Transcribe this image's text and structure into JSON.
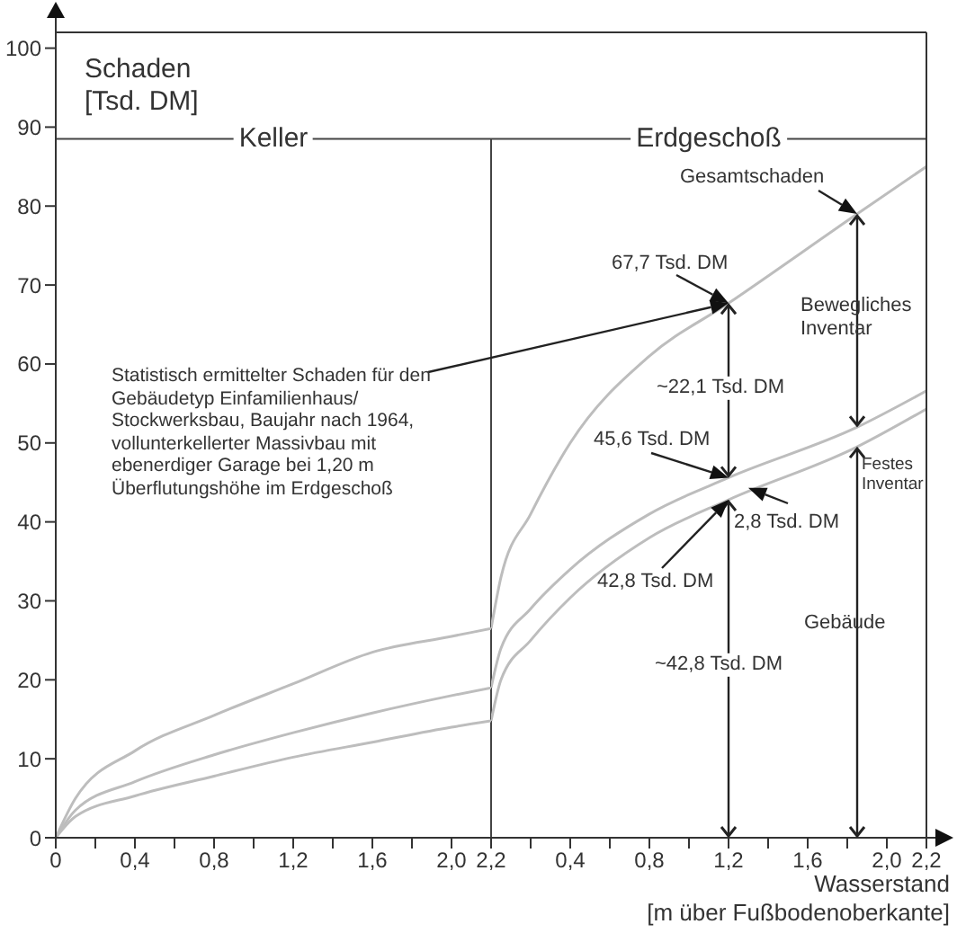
{
  "chart_data": [
    {
      "type": "line",
      "title": "Keller",
      "ylabel": "Schaden [Tsd. DM]",
      "x": [
        0,
        0.1,
        0.4,
        0.8,
        1.2,
        1.6,
        2.0,
        2.2
      ],
      "series": [
        {
          "color": "#bdbdbd",
          "values": [
            0,
            5,
            11,
            15.5,
            19.5,
            23.5,
            25.5,
            26.5
          ]
        },
        {
          "color": "#bdbdbd",
          "values": [
            0,
            3.5,
            7.1,
            10.5,
            13.3,
            15.8,
            18,
            19
          ]
        },
        {
          "color": "#bdbdbd",
          "values": [
            0,
            2.7,
            5.3,
            7.8,
            10.2,
            12.1,
            14,
            14.8
          ]
        }
      ],
      "xlim": [
        0,
        2.2
      ],
      "xticks": [
        0,
        {
          "value": 0.2,
          "label": null
        },
        {
          "value": 0.4,
          "label": "0,4"
        },
        {
          "value": 0.6,
          "label": null
        },
        {
          "value": 0.8,
          "label": "0,8"
        },
        {
          "value": 1.0,
          "label": null
        },
        {
          "value": 1.2,
          "label": "1,2"
        },
        {
          "value": 1.4,
          "label": null
        },
        {
          "value": 1.6,
          "label": "1,6"
        },
        {
          "value": 1.8,
          "label": null
        },
        {
          "value": 2.0,
          "label": "2,0"
        },
        {
          "value": 2.2,
          "label": "2,2"
        }
      ],
      "ylim": [
        0,
        102
      ],
      "yticks": [
        0,
        10,
        20,
        30,
        40,
        50,
        60,
        70,
        80,
        90,
        100
      ],
      "ref_lines": [
        {
          "axis": "y",
          "value": 88.5,
          "color": "#444444"
        },
        {
          "axis": "x",
          "value": 2.2,
          "color": "#444444"
        }
      ],
      "grid": false,
      "legend": false,
      "marker": "none",
      "line_style": "solid"
    },
    {
      "type": "line",
      "title": "Erdgeschoß",
      "xlabel": "Wasserstand\n[m über Fußbodenoberkante]",
      "x": [
        0,
        0.05,
        0.2,
        0.4,
        0.8,
        1.2,
        1.85,
        2.2
      ],
      "series": [
        {
          "color": "#bdbdbd",
          "values": [
            26.5,
            33,
            41,
            50,
            61,
            67.7,
            79,
            85
          ]
        },
        {
          "color": "#bdbdbd",
          "values": [
            19,
            24,
            29,
            34,
            41,
            45.6,
            52,
            56.6
          ]
        },
        {
          "color": "#bdbdbd",
          "values": [
            14.8,
            20,
            25,
            30.4,
            38,
            42.8,
            49.5,
            54.3
          ]
        }
      ],
      "xlim": [
        0,
        2.2
      ],
      "xticks": [
        {
          "value": 0,
          "label": null
        },
        {
          "value": 0.2,
          "label": null
        },
        {
          "value": 0.4,
          "label": "0,4"
        },
        {
          "value": 0.6,
          "label": null
        },
        {
          "value": 0.8,
          "label": "0,8"
        },
        {
          "value": 1.0,
          "label": null
        },
        {
          "value": 1.2,
          "label": "1,2"
        },
        {
          "value": 1.4,
          "label": null
        },
        {
          "value": 1.6,
          "label": "1,6"
        },
        {
          "value": 1.8,
          "label": null
        },
        {
          "value": 2.0,
          "label": "2,0"
        },
        {
          "value": 2.2,
          "label": "2,2"
        }
      ],
      "ylim": [
        0,
        102
      ],
      "yticks": [
        0,
        10,
        20,
        30,
        40,
        50,
        60,
        70,
        80,
        90,
        100
      ],
      "tick_labels": "x",
      "ref_lines": [
        {
          "axis": "y",
          "value": 88.5,
          "color": "#444444"
        }
      ],
      "annotations": [
        {
          "text": "Gesamtschaden",
          "x": 1.85,
          "y": 79
        },
        {
          "text": "67,7 Tsd. DM",
          "x": 1.2,
          "y": 67.7
        },
        {
          "text": "45,6 Tsd. DM",
          "x": 1.2,
          "y": 45.6
        },
        "42,8 Tsd. DM",
        {
          "text": "2,8 Tsd. DM",
          "x": 1.3,
          "y": 44.3
        },
        "~22,1 Tsd. DM",
        "~42,8 Tsd. DM",
        "Bewegliches Inventar",
        "Festes Inventar",
        "Gebäude",
        "Statistisch ermittelter Schaden für den Gebäudetyp Einfamilienhaus/ Stockwerksbau, Baujahr nach 1964, vollunterkellerter Massivbau mit ebenerdiger Garage bei 1,20 m Überflutungshöhe im Erdgeschoß"
      ],
      "grid": false,
      "legend": false,
      "marker": "none",
      "line_style": "solid"
    }
  ]
}
